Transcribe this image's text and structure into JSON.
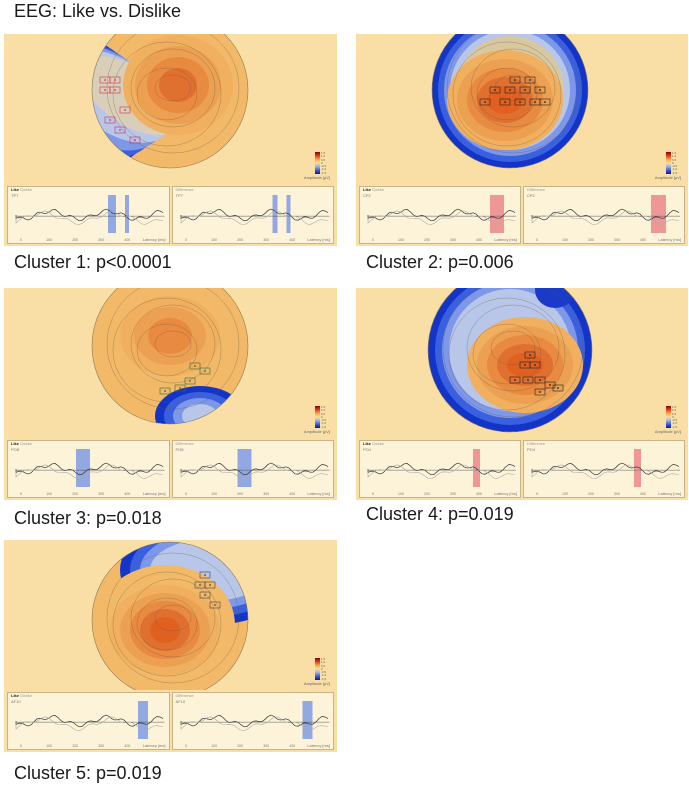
{
  "title": "EEG: Like vs. Dislike",
  "wave_labels": {
    "like": "Like",
    "dislike": "Dislike",
    "difference": "Difference",
    "ylabel": "Amplitude [µV]",
    "xlabel": "Latency [ms]"
  },
  "colorbar": {
    "label": "Amplitude [µV]",
    "ticks": [
      "1.5",
      "1.0",
      "0.5",
      "0",
      "-0.5",
      "-1.0",
      "-1.5"
    ]
  },
  "xticks": [
    "0",
    "100",
    "200",
    "300",
    "400"
  ],
  "colors": {
    "panel_bg": "#f9dea5",
    "blue_sig": "#4a73d8",
    "red_sig": "#e0505a"
  },
  "clusters": [
    {
      "caption": "Cluster 1: p<0.0001",
      "channel": "TP7",
      "sig_color": "blue"
    },
    {
      "caption": "Cluster 2: p=0.006",
      "channel": "CP2",
      "sig_color": "red"
    },
    {
      "caption": "Cluster 3: p=0.018",
      "channel": "PO8",
      "sig_color": "blue"
    },
    {
      "caption": "Cluster 4: p=0.019",
      "channel": "PO4",
      "sig_color": "red"
    },
    {
      "caption": "Cluster 5: p=0.019",
      "channel": "AF10",
      "sig_color": "blue"
    }
  ]
}
